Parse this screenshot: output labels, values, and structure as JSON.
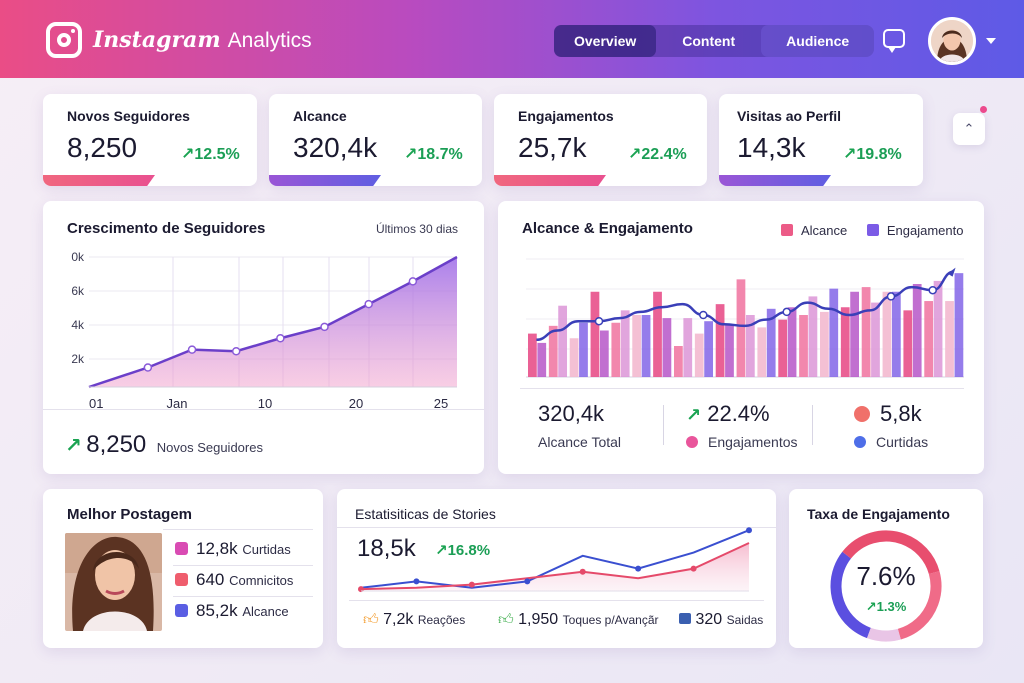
{
  "header": {
    "brand": "Instagram",
    "suffix": "Analytics",
    "tabs": [
      {
        "label": "Overview"
      },
      {
        "label": "Content"
      },
      {
        "label": "Audience"
      }
    ]
  },
  "kpis": [
    {
      "title": "Novos Seguidores",
      "value": "8,250",
      "delta": "12.5%"
    },
    {
      "title": "Alcance",
      "value": "320,4k",
      "delta": "18.7%"
    },
    {
      "title": "Engajamentos",
      "value": "25,7k",
      "delta": "22.4%"
    },
    {
      "title": "Visitas ao Perfil",
      "value": "14,3k",
      "delta": "19.8%"
    }
  ],
  "growth": {
    "title": "Crescimento de Seguidores",
    "period": "Últimos 30 dias",
    "summary_value": "8,250",
    "summary_label": "Novos Seguidores",
    "chart_data": {
      "type": "area",
      "title": "Crescimento de Seguidores",
      "y_ticks": [
        "0k",
        "6k",
        "4k",
        "2k"
      ],
      "x_ticks": [
        "01",
        "Jan",
        "10",
        "20",
        "25"
      ],
      "ylim": [
        0,
        8
      ],
      "x": [
        1,
        5,
        8,
        11,
        14,
        17,
        20,
        23,
        26
      ],
      "values": [
        0,
        1.2,
        2.3,
        2.2,
        3.0,
        3.7,
        5.1,
        6.5,
        8.0
      ]
    }
  },
  "reach": {
    "title": "Alcance & Engajamento",
    "legend": [
      {
        "label": "Alcance",
        "color": "#ec5b87"
      },
      {
        "label": "Engajamento",
        "color": "#7b5be6"
      }
    ],
    "stats": {
      "reach_value": "320,4k",
      "reach_label": "Alcance Total",
      "eng_value": "22.4%",
      "eng_label": "Engajamentos",
      "likes_value": "5,8k",
      "likes_label": "Curtidas"
    },
    "chart_data": {
      "type": "bar",
      "series": [
        {
          "name": "Alcance",
          "values": [
            28,
            33,
            25,
            55,
            35,
            40,
            55,
            20,
            28,
            47,
            63,
            32,
            37,
            40,
            42,
            45,
            58,
            55,
            43,
            49,
            49
          ]
        },
        {
          "name": "Engajamento",
          "values": [
            22,
            46,
            35,
            30,
            43,
            40,
            38,
            38,
            36,
            34,
            40,
            44,
            45,
            52,
            57,
            55,
            48,
            55,
            60,
            62,
            67
          ]
        }
      ],
      "line": [
        24,
        30,
        36,
        36,
        38,
        42,
        45,
        47,
        40,
        34,
        33,
        37,
        42,
        48,
        44,
        40,
        43,
        52,
        58,
        56,
        68
      ],
      "ylim": [
        0,
        80
      ]
    }
  },
  "best_post": {
    "title": "Melhor Postagem",
    "stats": [
      {
        "value": "12,8k",
        "label": "Curtidas",
        "color": "#d94bb3"
      },
      {
        "value": "640",
        "label": "Comnicitos",
        "color": "#ef5d6d"
      },
      {
        "value": "85,2k",
        "label": "Alcance",
        "color": "#5a5ee3"
      }
    ]
  },
  "stories": {
    "title": "Estatisiticas de Stories",
    "value": "18,5k",
    "delta": "16.8%",
    "stats": [
      {
        "value": "7,2k",
        "label": "Reações"
      },
      {
        "value": "1,950",
        "label": "Toques p/Avançãr"
      },
      {
        "value": "320",
        "label": "Saidas"
      }
    ],
    "chart_data": {
      "type": "line",
      "series": [
        {
          "name": "blue",
          "values": [
            0.05,
            0.15,
            0.05,
            0.15,
            0.55,
            0.35,
            0.6,
            0.95
          ]
        },
        {
          "name": "red",
          "values": [
            0.03,
            0.05,
            0.1,
            0.2,
            0.3,
            0.2,
            0.35,
            0.75
          ]
        }
      ],
      "ylim": [
        0,
        1
      ]
    }
  },
  "engagement_rate": {
    "title": "Taxa de Engajamento",
    "value": "7.6%",
    "delta": "1.3%",
    "chart_data": {
      "type": "pie",
      "segments": [
        {
          "name": "blue",
          "value": 30
        },
        {
          "name": "pink",
          "value": 35
        },
        {
          "name": "coral",
          "value": 25
        },
        {
          "name": "light",
          "value": 10
        }
      ]
    }
  },
  "colors": {
    "accent_blue": "#3a3fb8",
    "positive": "#1b9e55"
  }
}
